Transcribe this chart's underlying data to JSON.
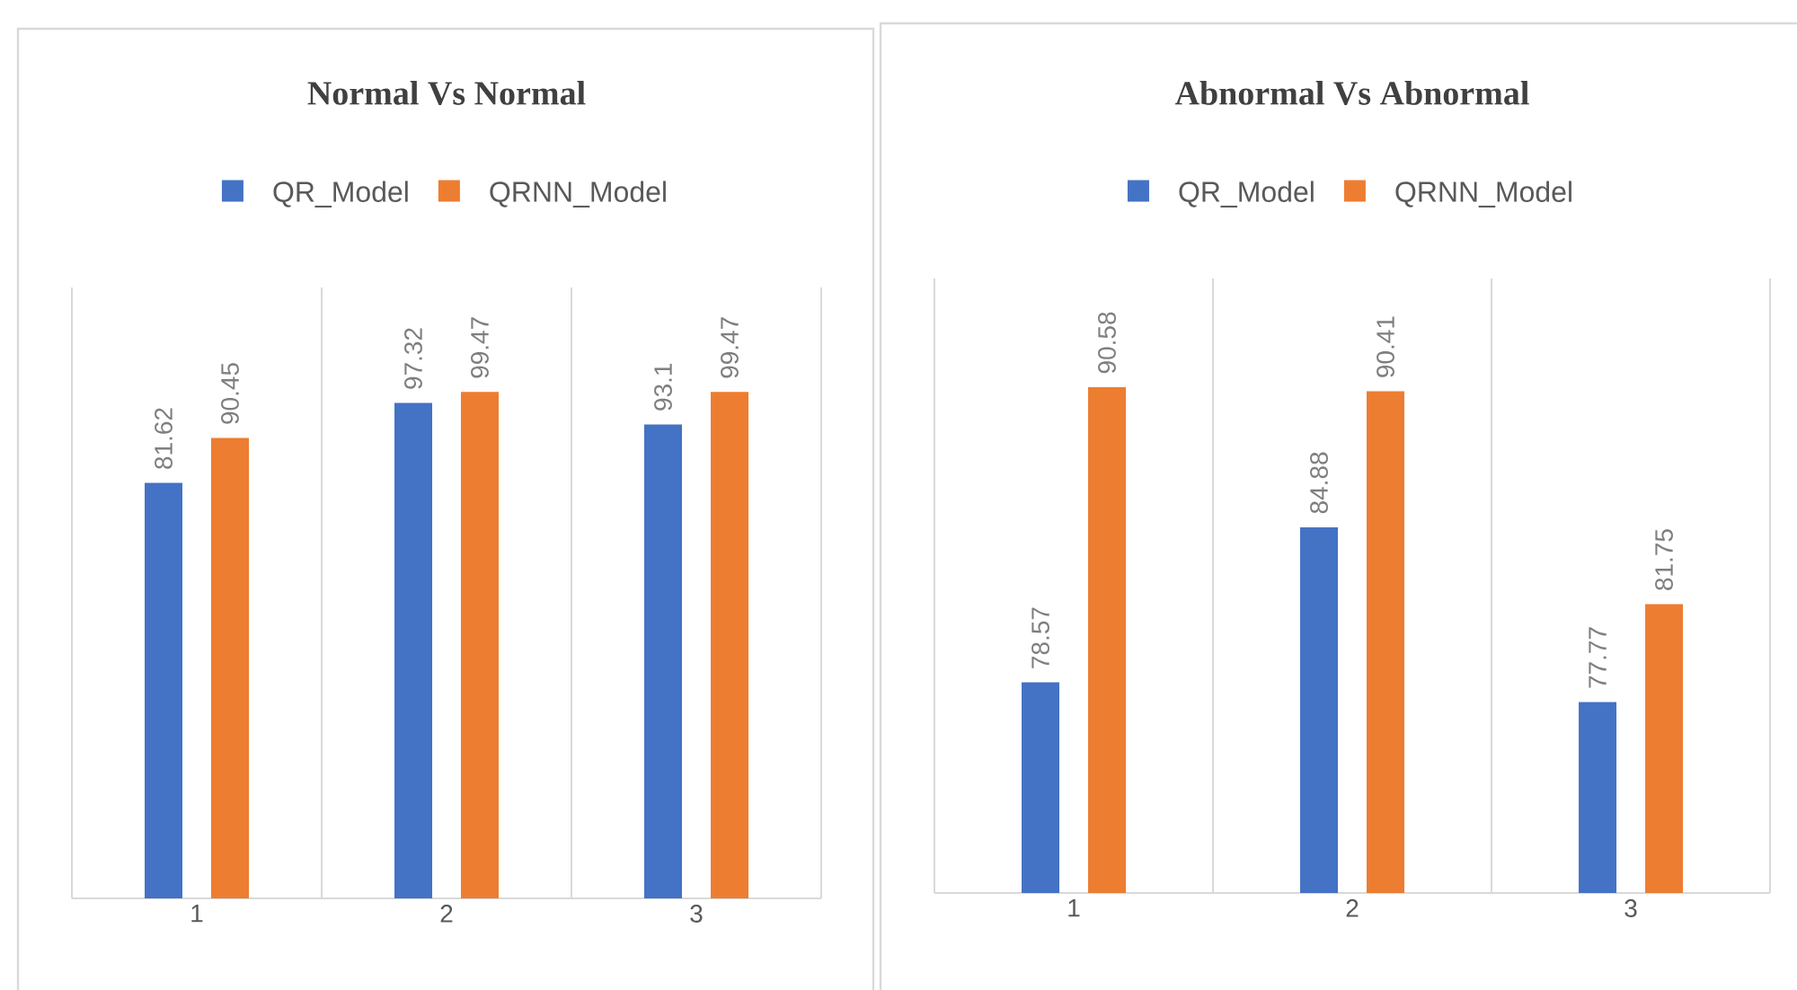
{
  "chart_data": [
    {
      "type": "bar",
      "title": "Normal Vs Normal",
      "categories": [
        "1",
        "2",
        "3"
      ],
      "series": [
        {
          "name": "QR_Model",
          "color": "#4472c4",
          "values": [
            81.62,
            97.32,
            93.1
          ]
        },
        {
          "name": "QRNN_Model",
          "color": "#ed7d31",
          "values": [
            90.45,
            99.47,
            99.47
          ]
        }
      ],
      "ylim": [
        0,
        120
      ],
      "data_labels": true,
      "grid": "x",
      "legend": "top",
      "tick_labels": "x"
    },
    {
      "type": "bar",
      "title": "Abnormal Vs Abnormal",
      "categories": [
        "1",
        "2",
        "3"
      ],
      "series": [
        {
          "name": "QR_Model",
          "color": "#4472c4",
          "values": [
            78.57,
            84.88,
            77.77
          ]
        },
        {
          "name": "QRNN_Model",
          "color": "#ed7d31",
          "values": [
            90.58,
            90.41,
            81.75
          ]
        }
      ],
      "ylim": [
        70,
        95
      ],
      "data_labels": true,
      "grid": "x",
      "legend": "top",
      "tick_labels": "x"
    }
  ]
}
